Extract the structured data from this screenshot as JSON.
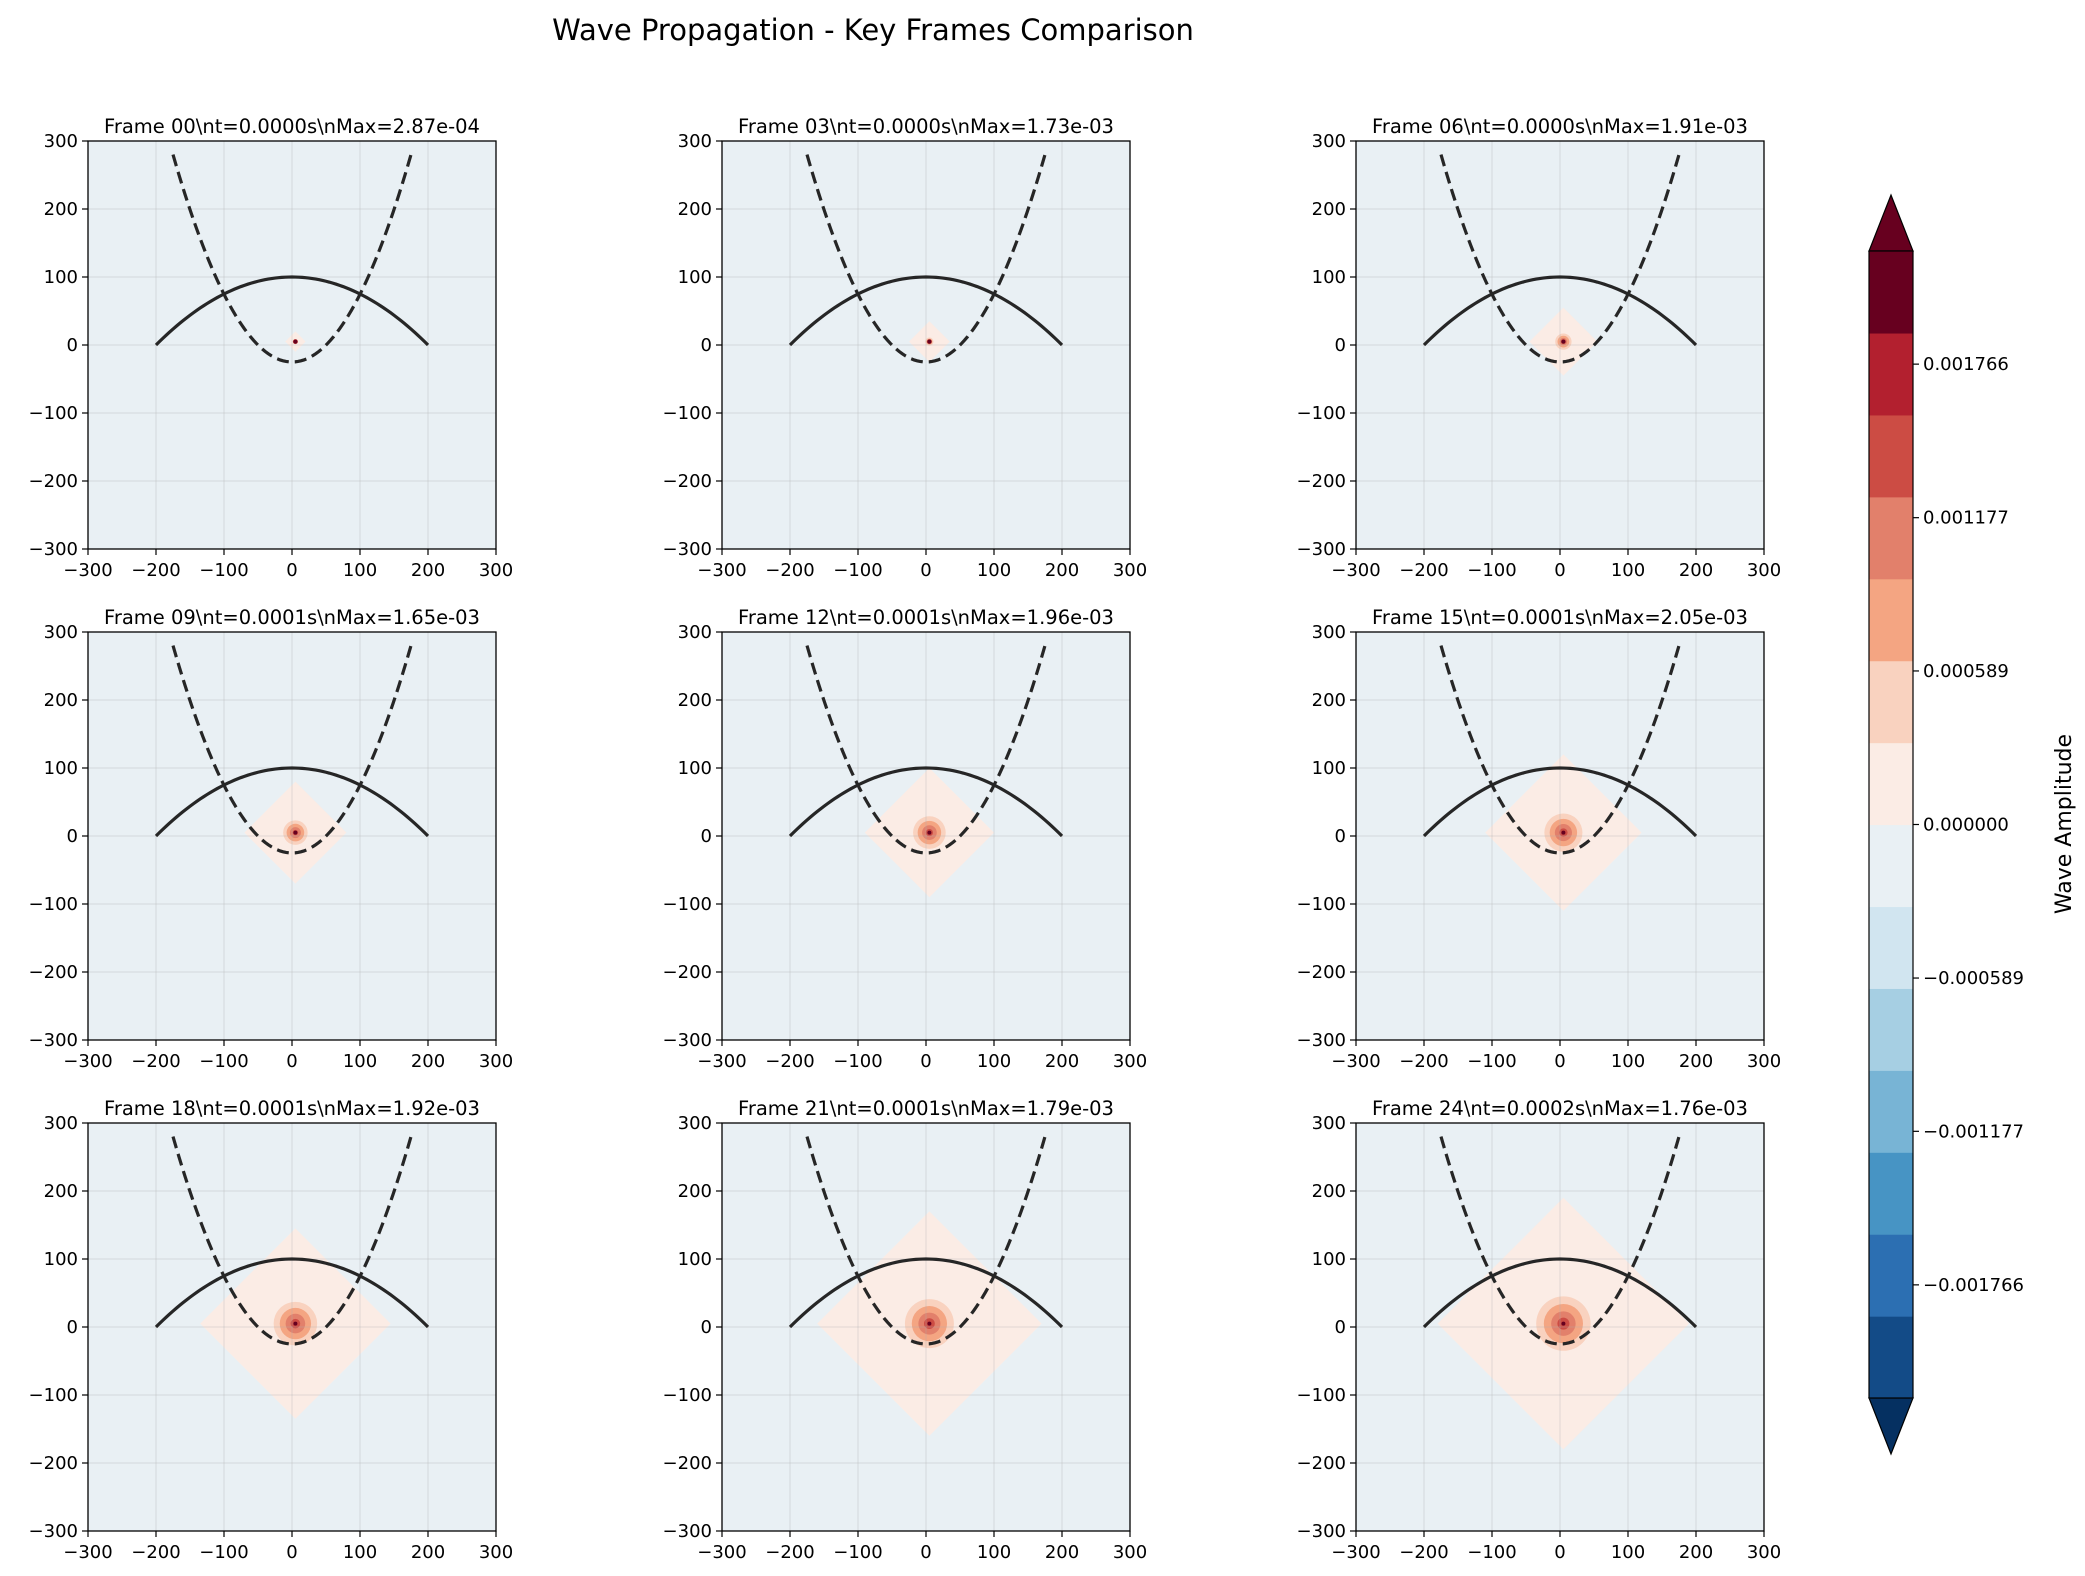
{
  "figure": {
    "suptitle": "Wave Propagation - Key Frames Comparison",
    "colorbar_label": "Wave Amplitude"
  },
  "chart_data": {
    "type": "heatmap",
    "xlim": [
      -300,
      300
    ],
    "ylim": [
      -300,
      300
    ],
    "xticks": [
      -300,
      -200,
      -100,
      0,
      100,
      200,
      300
    ],
    "yticks": [
      -300,
      -200,
      -100,
      0,
      100,
      200,
      300
    ],
    "grid": true,
    "overlays": {
      "solid_curve": {
        "x_range": [
          -200,
          200
        ],
        "peak_y": 100,
        "end_y": 0
      },
      "dashed_curve": {
        "x_range": [
          -175,
          175
        ],
        "vertex_y": -25,
        "end_y": 280
      }
    },
    "source": {
      "x": 5,
      "y": 5
    },
    "panels": [
      {
        "title": "Frame 00\\nt=0.0000s\\nMax=2.87e-04",
        "front_radius": 15,
        "core_radius": 0
      },
      {
        "title": "Frame 03\\nt=0.0000s\\nMax=1.73e-03",
        "front_radius": 30,
        "core_radius": 6
      },
      {
        "title": "Frame 06\\nt=0.0000s\\nMax=1.91e-03",
        "front_radius": 50,
        "core_radius": 12
      },
      {
        "title": "Frame 09\\nt=0.0001s\\nMax=1.65e-03",
        "front_radius": 75,
        "core_radius": 18
      },
      {
        "title": "Frame 12\\nt=0.0001s\\nMax=1.96e-03",
        "front_radius": 95,
        "core_radius": 24
      },
      {
        "title": "Frame 15\\nt=0.0001s\\nMax=2.05e-03",
        "front_radius": 115,
        "core_radius": 28
      },
      {
        "title": "Frame 18\\nt=0.0001s\\nMax=1.92e-03",
        "front_radius": 140,
        "core_radius": 32
      },
      {
        "title": "Frame 21\\nt=0.0001s\\nMax=1.79e-03",
        "front_radius": 165,
        "core_radius": 36
      },
      {
        "title": "Frame 24\\nt=0.0002s\\nMax=1.76e-03",
        "front_radius": 185,
        "core_radius": 40
      }
    ],
    "colorbar": {
      "levels": 14,
      "range": [
        -0.0022,
        0.0022
      ],
      "extend": "both",
      "tick_values": [
        0.001766,
        0.001177,
        0.000589,
        0.0,
        -0.000589,
        -0.001177,
        -0.001766
      ],
      "tick_labels": [
        "0.001766",
        "0.001177",
        "0.000589",
        "0.000000",
        "−0.000589",
        "−0.001177",
        "−0.001766"
      ],
      "colors": [
        "#053061",
        "#134b87",
        "#2c6fb2",
        "#4794c4",
        "#78b4d5",
        "#a6cfe3",
        "#d1e5f0",
        "#e9f0f4",
        "#fbece5",
        "#f9d2bf",
        "#f4a582",
        "#e2806b",
        "#cc4c44",
        "#b3202f",
        "#67001f"
      ]
    }
  }
}
